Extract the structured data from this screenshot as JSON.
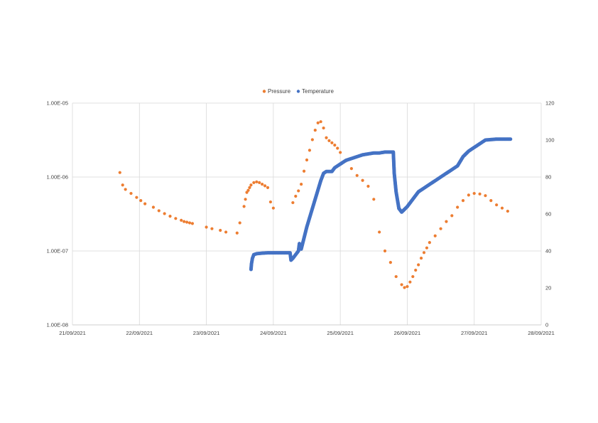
{
  "chart_data": {
    "type": "scatter",
    "legend": {
      "placement": "top",
      "entries": [
        {
          "name": "Pressure",
          "color": "#ED7D31"
        },
        {
          "name": "Temperature",
          "color": "#4472C4"
        }
      ]
    },
    "grid": true,
    "x_axis": {
      "type": "date",
      "range": [
        "21/09/2021",
        "28/09/2021"
      ],
      "tick_labels": [
        "21/09/2021",
        "22/09/2021",
        "23/09/2021",
        "24/09/2021",
        "25/09/2021",
        "26/09/2021",
        "27/09/2021",
        "28/09/2021"
      ]
    },
    "y_axis_left": {
      "scale": "log",
      "range": [
        1e-08,
        1e-05
      ],
      "tick_labels": [
        "1.00E-05",
        "1.00E-06",
        "1.00E-07",
        "1.00E-08"
      ]
    },
    "y_axis_right": {
      "scale": "linear",
      "range": [
        0,
        120
      ],
      "tick_labels": [
        "120",
        "100",
        "80",
        "60",
        "40",
        "20",
        "0"
      ]
    },
    "series": [
      {
        "name": "Pressure",
        "axis": "left",
        "color": "#ED7D31",
        "x": [
          "21/09/2021 17:00",
          "21/09/2021 18:00",
          "21/09/2021 19:00",
          "21/09/2021 21:00",
          "21/09/2021 23:00",
          "22/09/2021 00:30",
          "22/09/2021 02:00",
          "22/09/2021 05:00",
          "22/09/2021 07:00",
          "22/09/2021 09:00",
          "22/09/2021 11:00",
          "22/09/2021 13:00",
          "22/09/2021 15:00",
          "22/09/2021 16:00",
          "22/09/2021 17:00",
          "22/09/2021 18:00",
          "22/09/2021 19:00",
          "23/09/2021 00:00",
          "23/09/2021 02:00",
          "23/09/2021 05:00",
          "23/09/2021 07:00",
          "23/09/2021 11:00",
          "23/09/2021 12:00",
          "23/09/2021 13:30",
          "23/09/2021 14:00",
          "23/09/2021 14:30",
          "23/09/2021 15:00",
          "23/09/2021 15:30",
          "23/09/2021 16:00",
          "23/09/2021 17:00",
          "23/09/2021 18:00",
          "23/09/2021 19:00",
          "23/09/2021 20:00",
          "23/09/2021 21:00",
          "23/09/2021 22:00",
          "23/09/2021 23:00",
          "24/09/2021 00:00",
          "24/09/2021 07:00",
          "24/09/2021 08:00",
          "24/09/2021 09:00",
          "24/09/2021 10:00",
          "24/09/2021 11:00",
          "24/09/2021 12:00",
          "24/09/2021 13:00",
          "24/09/2021 14:00",
          "24/09/2021 15:00",
          "24/09/2021 16:00",
          "24/09/2021 17:00",
          "24/09/2021 18:00",
          "24/09/2021 19:00",
          "24/09/2021 20:00",
          "24/09/2021 21:00",
          "24/09/2021 22:00",
          "24/09/2021 23:00",
          "25/09/2021 00:00",
          "25/09/2021 02:00",
          "25/09/2021 04:00",
          "25/09/2021 06:00",
          "25/09/2021 08:00",
          "25/09/2021 10:00",
          "25/09/2021 12:00",
          "25/09/2021 14:00",
          "25/09/2021 16:00",
          "25/09/2021 18:00",
          "25/09/2021 20:00",
          "25/09/2021 22:00",
          "25/09/2021 23:00",
          "26/09/2021 00:00",
          "26/09/2021 01:00",
          "26/09/2021 02:00",
          "26/09/2021 03:00",
          "26/09/2021 04:00",
          "26/09/2021 05:00",
          "26/09/2021 06:00",
          "26/09/2021 07:00",
          "26/09/2021 08:00",
          "26/09/2021 10:00",
          "26/09/2021 12:00",
          "26/09/2021 14:00",
          "26/09/2021 16:00",
          "26/09/2021 18:00",
          "26/09/2021 20:00",
          "26/09/2021 22:00",
          "27/09/2021 00:00",
          "27/09/2021 02:00",
          "27/09/2021 04:00",
          "27/09/2021 06:00",
          "27/09/2021 08:00",
          "27/09/2021 10:00",
          "27/09/2021 12:00"
        ],
        "values": [
          1.15e-06,
          7.8e-07,
          6.8e-07,
          6e-07,
          5.3e-07,
          4.8e-07,
          4.35e-07,
          3.9e-07,
          3.5e-07,
          3.2e-07,
          2.95e-07,
          2.75e-07,
          2.6e-07,
          2.5e-07,
          2.45e-07,
          2.4e-07,
          2.35e-07,
          2.1e-07,
          2e-07,
          1.9e-07,
          1.8e-07,
          1.75e-07,
          2.4e-07,
          4e-07,
          5e-07,
          6.2e-07,
          6.6e-07,
          7.2e-07,
          7.8e-07,
          8.4e-07,
          8.6e-07,
          8.4e-07,
          8e-07,
          7.6e-07,
          7.2e-07,
          4.6e-07,
          3.8e-07,
          4.5e-07,
          5.5e-07,
          6.5e-07,
          8e-07,
          1.2e-06,
          1.7e-06,
          2.3e-06,
          3.2e-06,
          4.3e-06,
          5.4e-06,
          5.6e-06,
          4.6e-06,
          3.4e-06,
          3.1e-06,
          2.9e-06,
          2.7e-06,
          2.45e-06,
          2.15e-06,
          1.65e-06,
          1.3e-06,
          1.05e-06,
          9e-07,
          7.5e-07,
          5e-07,
          1.8e-07,
          1e-07,
          7e-08,
          4.5e-08,
          3.5e-08,
          3.2e-08,
          3.3e-08,
          3.8e-08,
          4.5e-08,
          5.5e-08,
          6.5e-08,
          8e-08,
          9.5e-08,
          1.1e-07,
          1.3e-07,
          1.6e-07,
          2e-07,
          2.5e-07,
          3e-07,
          3.9e-07,
          4.8e-07,
          5.7e-07,
          6e-07,
          5.9e-07,
          5.6e-07,
          4.8e-07,
          4.2e-07,
          3.8e-07,
          3.45e-07
        ]
      },
      {
        "name": "Temperature",
        "axis": "right",
        "color": "#4472C4",
        "x": [
          "23/09/2021 16:00",
          "23/09/2021 16:10",
          "23/09/2021 16:30",
          "23/09/2021 17:00",
          "23/09/2021 18:00",
          "23/09/2021 20:00",
          "23/09/2021 22:00",
          "24/09/2021 00:00",
          "24/09/2021 02:00",
          "24/09/2021 05:00",
          "24/09/2021 06:00",
          "24/09/2021 06:20",
          "24/09/2021 07:00",
          "24/09/2021 08:00",
          "24/09/2021 09:00",
          "24/09/2021 09:20",
          "24/09/2021 10:00",
          "24/09/2021 11:00",
          "24/09/2021 12:00",
          "24/09/2021 13:00",
          "24/09/2021 14:00",
          "24/09/2021 15:00",
          "24/09/2021 16:00",
          "24/09/2021 17:00",
          "24/09/2021 18:00",
          "24/09/2021 19:00",
          "24/09/2021 20:00",
          "24/09/2021 21:00",
          "24/09/2021 22:00",
          "25/09/2021 00:00",
          "25/09/2021 02:00",
          "25/09/2021 04:00",
          "25/09/2021 06:00",
          "25/09/2021 08:00",
          "25/09/2021 10:00",
          "25/09/2021 12:00",
          "25/09/2021 14:00",
          "25/09/2021 16:00",
          "25/09/2021 18:00",
          "25/09/2021 19:00",
          "25/09/2021 19:20",
          "25/09/2021 20:00",
          "25/09/2021 21:00",
          "25/09/2021 22:00",
          "26/09/2021 00:00",
          "26/09/2021 02:00",
          "26/09/2021 04:00",
          "26/09/2021 06:00",
          "26/09/2021 08:00",
          "26/09/2021 10:00",
          "26/09/2021 12:00",
          "26/09/2021 14:00",
          "26/09/2021 16:00",
          "26/09/2021 18:00",
          "26/09/2021 20:00",
          "26/09/2021 22:00",
          "27/09/2021 00:00",
          "27/09/2021 04:00",
          "27/09/2021 08:00",
          "27/09/2021 13:00"
        ],
        "values": [
          30,
          33,
          36,
          38,
          38.5,
          38.8,
          39,
          39,
          39,
          39,
          39,
          35,
          36,
          38,
          40,
          44,
          41,
          47,
          53,
          58,
          63,
          68,
          73,
          78,
          82,
          83,
          83,
          83,
          85,
          87,
          89,
          90,
          91,
          92,
          92.5,
          93,
          93,
          93.5,
          93.5,
          93.5,
          82,
          72,
          63,
          61,
          64,
          68,
          72,
          74,
          76,
          78,
          80,
          82,
          84,
          86,
          91,
          94,
          96,
          100,
          100.5,
          100.5
        ]
      }
    ]
  }
}
